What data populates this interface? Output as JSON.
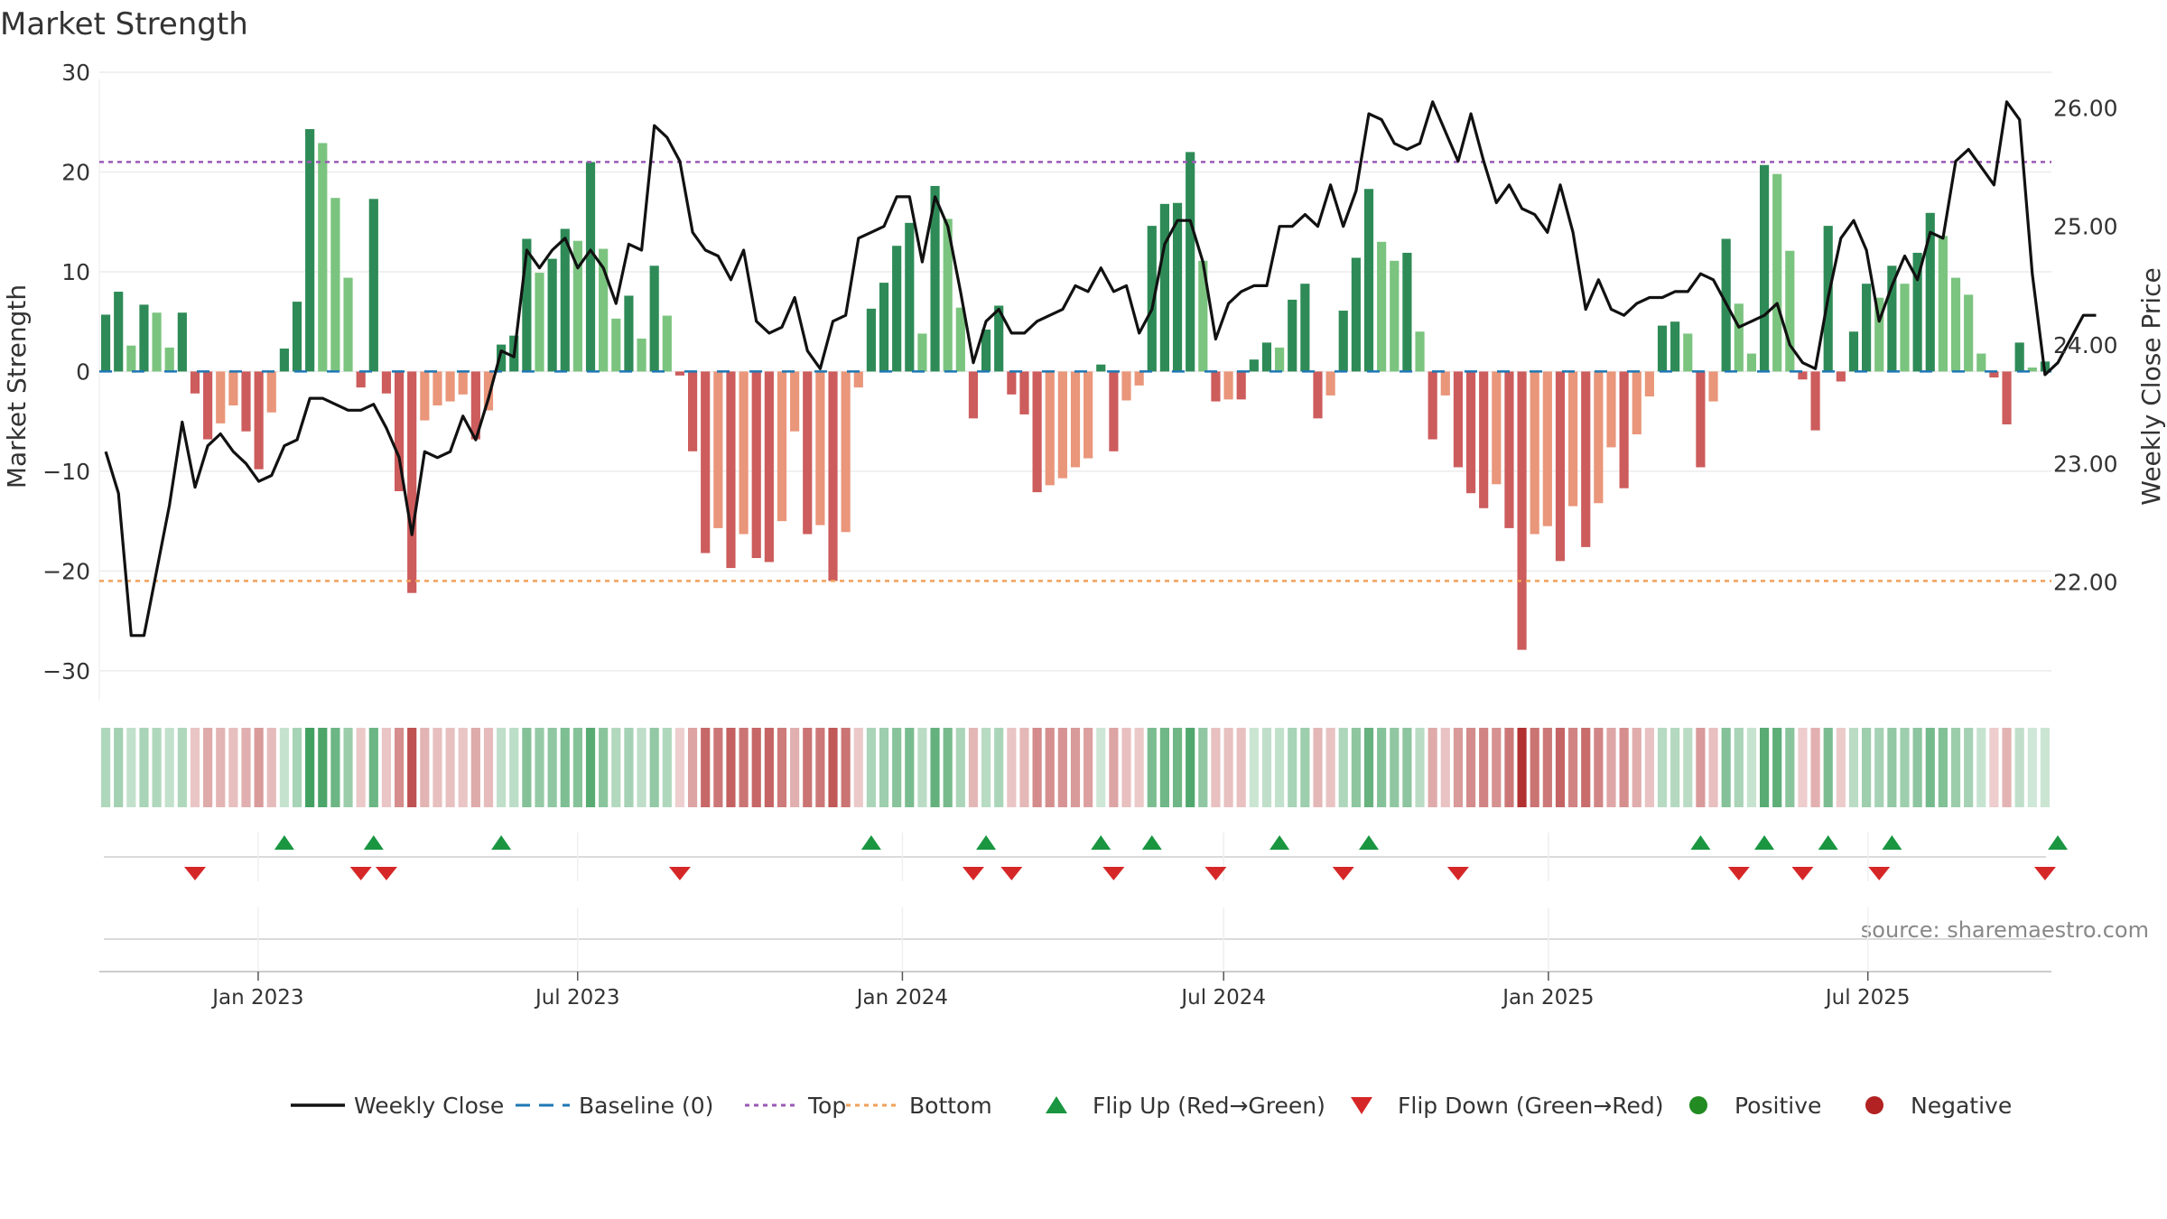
{
  "chart_data": {
    "type": "bar",
    "title": "Market Strength",
    "ylabel": "Market Strength",
    "y2label": "Weekly Close Price",
    "ylim": [
      -33,
      30
    ],
    "y2lim": [
      21.0,
      26.3
    ],
    "yticks": [
      30,
      20,
      10,
      0,
      -10,
      -20,
      -30
    ],
    "yticklabels": [
      "30",
      "20",
      "10",
      "0",
      "−10",
      "−20",
      "−30"
    ],
    "y2ticks": [
      26.0,
      25.0,
      24.0,
      23.0,
      22.0
    ],
    "y2ticklabels": [
      "26.00",
      "25.00",
      "24.00",
      "23.00",
      "22.00"
    ],
    "top_level": 21,
    "bottom_level": -21,
    "x_start": "2022-10-03",
    "x_end": "2025-10-13",
    "xticks": [
      {
        "date": "2023-01-01",
        "label": "Jan 2023"
      },
      {
        "date": "2023-07-01",
        "label": "Jul 2023"
      },
      {
        "date": "2024-01-01",
        "label": "Jan 2024"
      },
      {
        "date": "2024-07-01",
        "label": "Jul 2024"
      },
      {
        "date": "2025-01-01",
        "label": "Jan 2025"
      },
      {
        "date": "2025-07-01",
        "label": "Jul 2025"
      }
    ],
    "strength": [
      5.7,
      8.0,
      2.6,
      6.7,
      5.9,
      2.4,
      5.9,
      -2.2,
      -6.8,
      -5.2,
      -3.4,
      -6.0,
      -9.8,
      -4.1,
      2.3,
      7.0,
      24.3,
      22.9,
      17.4,
      9.4,
      -1.6,
      17.3,
      -2.2,
      -12.0,
      -22.2,
      -4.9,
      -3.4,
      -3.0,
      -2.3,
      -6.8,
      -3.9,
      2.7,
      3.6,
      13.3,
      9.9,
      11.3,
      14.3,
      13.1,
      21.0,
      12.3,
      5.3,
      7.6,
      3.3,
      10.6,
      5.6,
      -0.4,
      -8.0,
      -18.2,
      -15.7,
      -19.7,
      -16.3,
      -18.7,
      -19.1,
      -15.0,
      -6.0,
      -16.3,
      -15.4,
      -21.0,
      -16.1,
      -1.6,
      6.3,
      8.9,
      12.6,
      14.9,
      3.8,
      18.6,
      15.3,
      6.4,
      -4.7,
      4.2,
      6.6,
      -2.3,
      -4.3,
      -12.1,
      -11.4,
      -10.7,
      -9.6,
      -8.7,
      0.7,
      -8.0,
      -2.9,
      -1.4,
      14.6,
      16.8,
      16.9,
      22.0,
      11.1,
      -3.0,
      -2.8,
      -2.8,
      1.2,
      2.9,
      2.4,
      7.2,
      8.8,
      -4.7,
      -2.4,
      6.1,
      11.4,
      18.3,
      13.0,
      11.1,
      11.9,
      4.0,
      -6.8,
      -2.4,
      -9.6,
      -12.2,
      -13.7,
      -11.3,
      -15.7,
      -27.9,
      -16.3,
      -15.5,
      -19.0,
      -13.5,
      -17.6,
      -13.2,
      -7.6,
      -11.7,
      -6.3,
      -2.5,
      4.6,
      5.0,
      3.8,
      -9.6,
      -3.0,
      13.3,
      6.8,
      1.8,
      20.7,
      19.8,
      12.1,
      -0.8,
      -5.9,
      14.6,
      -1.0,
      4.0,
      8.8,
      7.4,
      10.6,
      8.8,
      11.9,
      15.9,
      13.6,
      9.4,
      7.7,
      1.8,
      -0.6,
      -5.3,
      2.9,
      0.4,
      1.0
    ],
    "close": [
      23.1,
      22.75,
      21.55,
      21.55,
      22.1,
      22.65,
      23.35,
      22.8,
      23.15,
      23.25,
      23.1,
      23.0,
      22.85,
      22.9,
      23.15,
      23.2,
      23.55,
      23.55,
      23.5,
      23.45,
      23.45,
      23.5,
      23.3,
      23.05,
      22.4,
      23.1,
      23.05,
      23.1,
      23.4,
      23.2,
      23.55,
      23.95,
      23.9,
      24.8,
      24.65,
      24.8,
      24.9,
      24.65,
      24.8,
      24.65,
      24.35,
      24.85,
      24.8,
      25.85,
      25.75,
      25.55,
      24.95,
      24.8,
      24.75,
      24.55,
      24.8,
      24.2,
      24.1,
      24.15,
      24.4,
      23.95,
      23.8,
      24.2,
      24.25,
      24.9,
      24.95,
      25.0,
      25.25,
      25.25,
      24.7,
      25.25,
      25.0,
      24.45,
      23.85,
      24.2,
      24.3,
      24.1,
      24.1,
      24.2,
      24.25,
      24.3,
      24.5,
      24.45,
      24.65,
      24.45,
      24.5,
      24.1,
      24.3,
      24.85,
      25.05,
      25.05,
      24.7,
      24.05,
      24.35,
      24.45,
      24.5,
      24.5,
      25.0,
      25.0,
      25.1,
      25.0,
      25.35,
      25.0,
      25.3,
      25.95,
      25.9,
      25.7,
      25.65,
      25.7,
      26.05,
      25.8,
      25.55,
      25.95,
      25.55,
      25.2,
      25.35,
      25.15,
      25.1,
      24.95,
      25.35,
      24.95,
      24.3,
      24.55,
      24.3,
      24.25,
      24.35,
      24.4,
      24.4,
      24.45,
      24.45,
      24.6,
      24.55,
      24.35,
      24.15,
      24.2,
      24.25,
      24.35,
      24.0,
      23.85,
      23.8,
      24.4,
      24.9,
      25.05,
      24.8,
      24.2,
      24.5,
      24.75,
      24.55,
      24.95,
      24.9,
      25.55,
      25.65,
      25.5,
      25.35,
      26.05,
      25.9,
      24.6,
      23.75,
      23.85,
      24.05,
      24.25,
      24.25
    ],
    "flip_up_weeks": [
      14,
      21,
      31,
      60,
      69,
      78,
      82,
      92,
      99,
      125,
      130,
      135,
      140,
      153
    ],
    "flip_down_weeks": [
      7,
      20,
      22,
      45,
      68,
      71,
      79,
      87,
      97,
      106,
      128,
      133,
      139,
      152
    ],
    "legend": [
      {
        "label": "Weekly Close",
        "symbol": "solid-line",
        "color": "#111111"
      },
      {
        "label": "Baseline (0)",
        "symbol": "dashed-line",
        "color": "#1f77b4"
      },
      {
        "label": "Top",
        "symbol": "dotted-line",
        "color": "#9b59b6"
      },
      {
        "label": "Bottom",
        "symbol": "dotted-line",
        "color": "#f0a05a"
      },
      {
        "label": "Flip Up (Red→Green)",
        "symbol": "triangle-up",
        "color": "#1a9641"
      },
      {
        "label": "Flip Down (Green→Red)",
        "symbol": "triangle-down",
        "color": "#d62728"
      },
      {
        "label": "Positive",
        "symbol": "circle",
        "color": "#228b22"
      },
      {
        "label": "Negative",
        "symbol": "circle",
        "color": "#b22222"
      }
    ],
    "legend_position": "bottom-center"
  },
  "source_text": "source: sharemaestro.com",
  "colors": {
    "pos_strong": "#2e8b57",
    "pos_light": "#7bc47f",
    "neg_strong": "#cd5c5c",
    "neg_light": "#e9967a",
    "close_line": "#111111",
    "baseline": "#1f77b4",
    "top_line": "#9b59b6",
    "bottom_line": "#f0a05a",
    "flip_up": "#1a9641",
    "flip_down": "#d62728"
  }
}
